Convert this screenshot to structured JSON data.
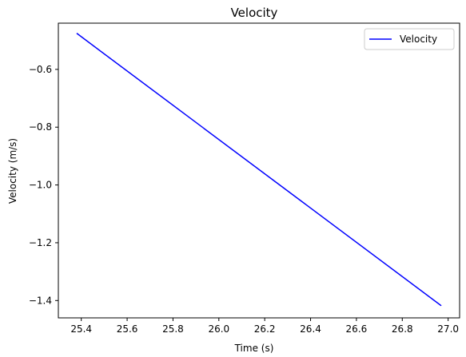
{
  "chart_data": {
    "type": "line",
    "title": "Velocity",
    "xlabel": "Time (s)",
    "ylabel": "Velocity (m/s)",
    "xlim": [
      25.3,
      27.05
    ],
    "ylim": [
      -1.46,
      -0.44
    ],
    "xticks": [
      25.4,
      25.6,
      25.8,
      26.0,
      26.2,
      26.4,
      26.6,
      26.8,
      27.0
    ],
    "xtick_labels": [
      "25.4",
      "25.6",
      "25.8",
      "26.0",
      "26.2",
      "26.4",
      "26.6",
      "26.8",
      "27.0"
    ],
    "yticks": [
      -0.6,
      -0.8,
      -1.0,
      -1.2,
      -1.4
    ],
    "ytick_labels": [
      "−0.6",
      "−0.8",
      "−1.0",
      "−1.2",
      "−1.4"
    ],
    "grid": false,
    "legend_position": "top-right",
    "series": [
      {
        "name": "Velocity",
        "color": "#0000ff",
        "x": [
          25.38,
          26.97
        ],
        "y": [
          -0.475,
          -1.418
        ]
      }
    ]
  }
}
